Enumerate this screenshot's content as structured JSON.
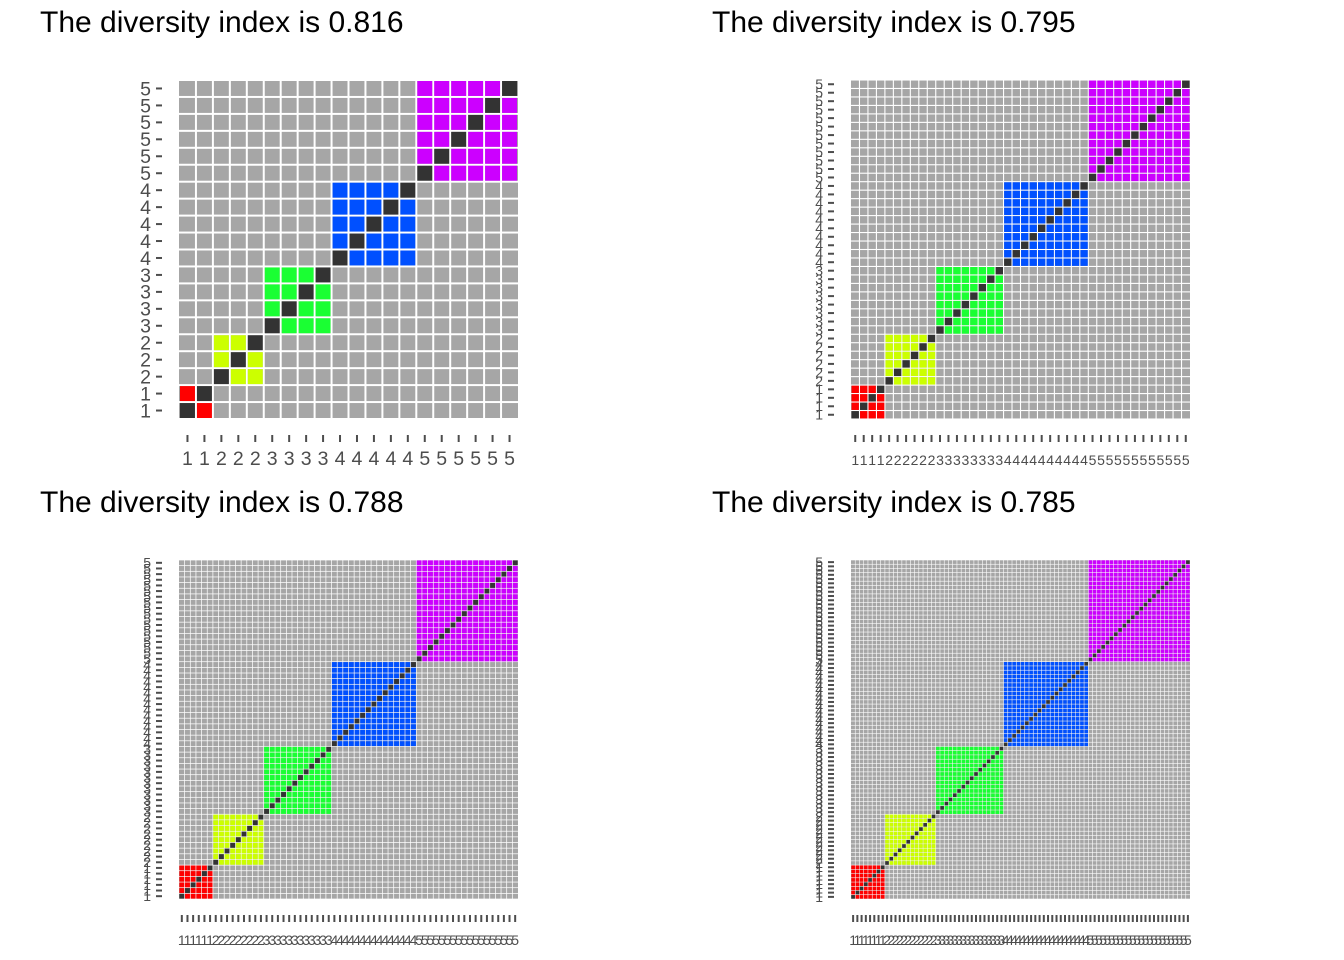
{
  "colors": {
    "background": "#a6a6a6",
    "grid": "#ffffff",
    "diagonal": "#333333",
    "groups": [
      "#ff0000",
      "#ccff00",
      "#1aff33",
      "#0050ff",
      "#cc00ff"
    ],
    "tick": "#4d4d4d"
  },
  "chart_data": [
    {
      "type": "heatmap",
      "title": "The diversity index is 0.816",
      "group_labels": [
        "1",
        "2",
        "3",
        "4",
        "5"
      ],
      "group_sizes": [
        2,
        3,
        4,
        5,
        6
      ],
      "diversity_index": 0.816
    },
    {
      "type": "heatmap",
      "title": "The diversity index is 0.795",
      "group_labels": [
        "1",
        "2",
        "3",
        "4",
        "5"
      ],
      "group_sizes": [
        4,
        6,
        8,
        10,
        12
      ],
      "diversity_index": 0.795
    },
    {
      "type": "heatmap",
      "title": "The diversity index is 0.788",
      "group_labels": [
        "1",
        "2",
        "3",
        "4",
        "5"
      ],
      "group_sizes": [
        6,
        9,
        12,
        15,
        18
      ],
      "diversity_index": 0.788
    },
    {
      "type": "heatmap",
      "title": "The diversity index is 0.785",
      "group_labels": [
        "1",
        "2",
        "3",
        "4",
        "5"
      ],
      "group_sizes": [
        8,
        12,
        16,
        20,
        24
      ],
      "diversity_index": 0.785
    }
  ]
}
